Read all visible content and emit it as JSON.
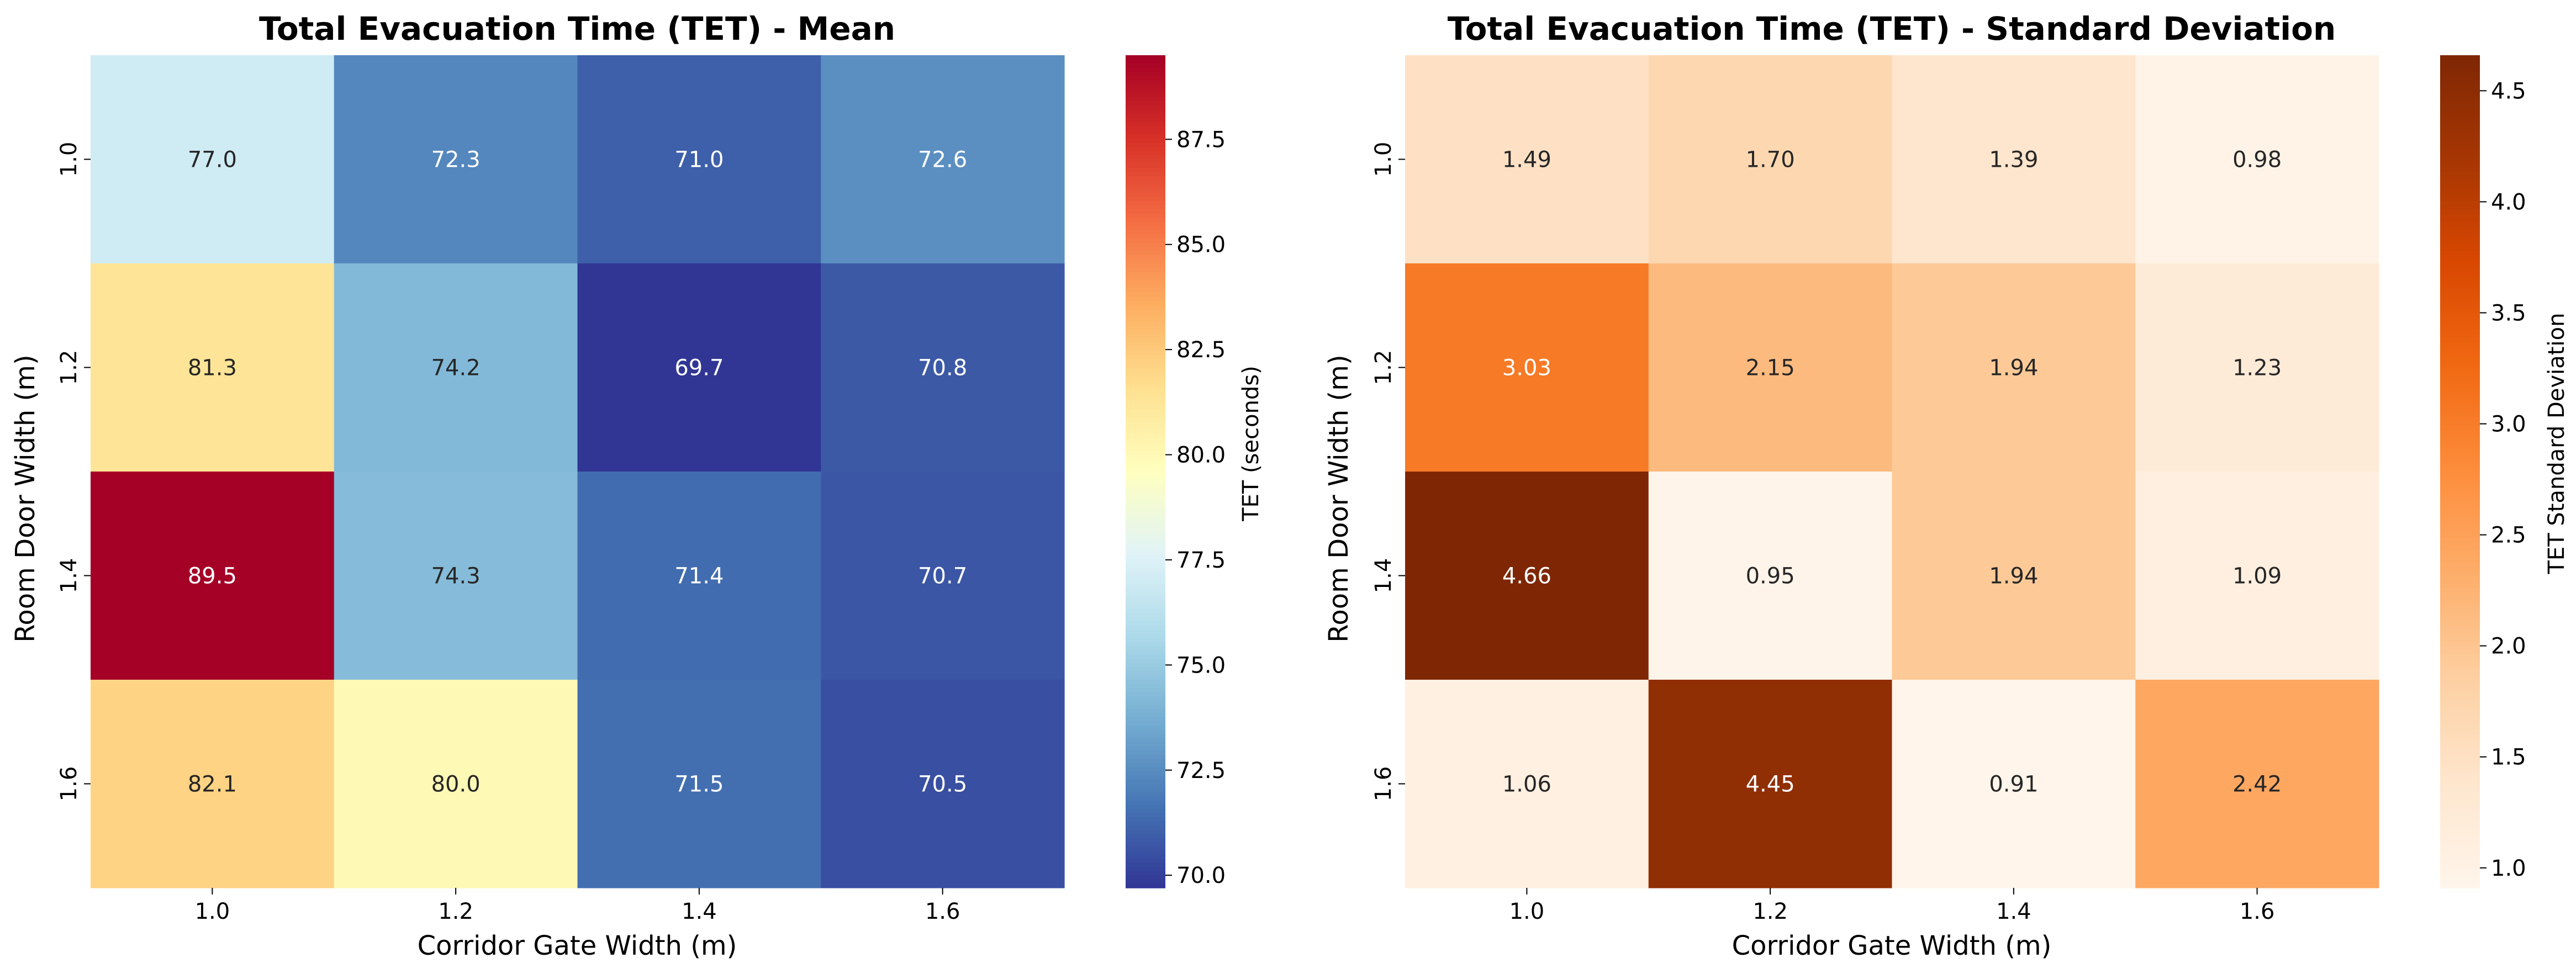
{
  "chart_data": [
    {
      "type": "heatmap",
      "title": "Total Evacuation Time (TET) - Mean",
      "xlabel": "Corridor Gate Width (m)",
      "ylabel": "Room Door Width (m)",
      "x": [
        "1.0",
        "1.2",
        "1.4",
        "1.6"
      ],
      "y": [
        "1.0",
        "1.2",
        "1.4",
        "1.6"
      ],
      "values": [
        [
          77.0,
          72.3,
          71.0,
          72.6
        ],
        [
          81.3,
          74.2,
          69.7,
          70.8
        ],
        [
          89.5,
          74.3,
          71.4,
          70.7
        ],
        [
          82.1,
          80.0,
          71.5,
          70.5
        ]
      ],
      "value_labels": [
        [
          "77.0",
          "72.3",
          "71.0",
          "72.6"
        ],
        [
          "81.3",
          "74.2",
          "69.7",
          "70.8"
        ],
        [
          "89.5",
          "74.3",
          "71.4",
          "70.7"
        ],
        [
          "82.1",
          "80.0",
          "71.5",
          "70.5"
        ]
      ],
      "colormap": "RdYlBu_r",
      "vmin": 69.7,
      "vmax": 89.5,
      "colorbar": {
        "label": "TET (seconds)",
        "ticks": [
          70.0,
          72.5,
          75.0,
          77.5,
          80.0,
          82.5,
          85.0,
          87.5
        ],
        "tick_labels": [
          "70.0",
          "72.5",
          "75.0",
          "77.5",
          "80.0",
          "82.5",
          "85.0",
          "87.5"
        ]
      }
    },
    {
      "type": "heatmap",
      "title": "Total Evacuation Time (TET) - Standard Deviation",
      "xlabel": "Corridor Gate Width (m)",
      "ylabel": "Room Door Width (m)",
      "x": [
        "1.0",
        "1.2",
        "1.4",
        "1.6"
      ],
      "y": [
        "1.0",
        "1.2",
        "1.4",
        "1.6"
      ],
      "values": [
        [
          1.49,
          1.7,
          1.39,
          0.98
        ],
        [
          3.03,
          2.15,
          1.94,
          1.23
        ],
        [
          4.66,
          0.95,
          1.94,
          1.09
        ],
        [
          1.06,
          4.45,
          0.91,
          2.42
        ]
      ],
      "value_labels": [
        [
          "1.49",
          "1.70",
          "1.39",
          "0.98"
        ],
        [
          "3.03",
          "2.15",
          "1.94",
          "1.23"
        ],
        [
          "4.66",
          "0.95",
          "1.94",
          "1.09"
        ],
        [
          "1.06",
          "4.45",
          "0.91",
          "2.42"
        ]
      ],
      "colormap": "Oranges",
      "vmin": 0.91,
      "vmax": 4.66,
      "colorbar": {
        "label": "TET Standard Deviation",
        "ticks": [
          1.0,
          1.5,
          2.0,
          2.5,
          3.0,
          3.5,
          4.0,
          4.5
        ],
        "tick_labels": [
          "1.0",
          "1.5",
          "2.0",
          "2.5",
          "3.0",
          "3.5",
          "4.0",
          "4.5"
        ]
      }
    }
  ]
}
